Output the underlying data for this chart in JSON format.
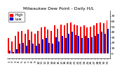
{
  "title": "Milwaukee Dew Point - Daily H/L",
  "days": [
    1,
    2,
    3,
    4,
    5,
    6,
    7,
    8,
    9,
    10,
    11,
    12,
    13,
    14,
    15,
    16,
    17,
    18,
    19,
    20,
    21,
    22,
    23,
    24,
    25,
    26,
    27,
    28,
    29,
    30,
    31
  ],
  "highs": [
    28,
    22,
    32,
    40,
    42,
    36,
    44,
    40,
    36,
    42,
    48,
    50,
    44,
    42,
    52,
    46,
    54,
    52,
    56,
    58,
    54,
    52,
    50,
    52,
    48,
    50,
    52,
    56,
    58,
    56,
    62
  ],
  "lows": [
    5,
    2,
    8,
    18,
    20,
    14,
    24,
    18,
    14,
    18,
    26,
    28,
    20,
    18,
    30,
    22,
    32,
    28,
    36,
    40,
    34,
    32,
    28,
    32,
    28,
    30,
    32,
    36,
    40,
    36,
    46
  ],
  "high_color": "#ff0000",
  "low_color": "#0000cc",
  "bg_color": "#ffffff",
  "ylim": [
    -10,
    80
  ],
  "yticks": [
    0,
    10,
    20,
    30,
    40,
    50,
    60,
    70
  ],
  "title_fontsize": 4.5,
  "tick_fontsize": 3.2,
  "legend_high": "High",
  "legend_low": "Low",
  "legend_fontsize": 3.5
}
